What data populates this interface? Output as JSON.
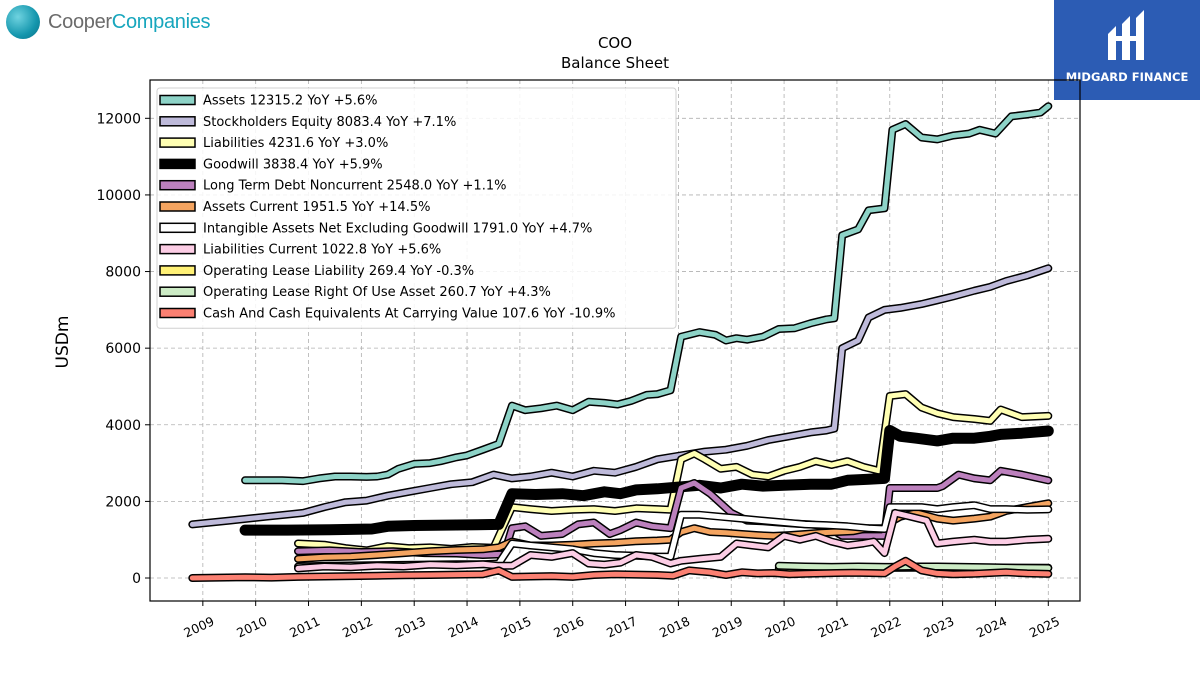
{
  "brand": {
    "company_part1": "Cooper",
    "company_part2": "Companies",
    "badge_name": "MIDGARD FINANCE",
    "badge_color": "#2c5cb4"
  },
  "chart_data": {
    "type": "line",
    "title": "COO",
    "subtitle": "Balance  Sheet",
    "ylabel": "USDm",
    "xlabel": "",
    "ylim": [
      -600,
      13000
    ],
    "xlim": [
      2008.0,
      2025.6
    ],
    "yticks": [
      0,
      2000,
      4000,
      6000,
      8000,
      10000,
      12000
    ],
    "xticks": [
      "2009",
      "2010",
      "2011",
      "2012",
      "2013",
      "2014",
      "2015",
      "2016",
      "2017",
      "2018",
      "2019",
      "2020",
      "2021",
      "2022",
      "2023",
      "2024",
      "2025"
    ],
    "grid": true,
    "legend_position": "top-left",
    "series": [
      {
        "name": "Assets  12315.2 YoY +5.6%",
        "color": "#8dd3c7",
        "width": 5,
        "x": [
          2009.8,
          2010.5,
          2010.9,
          2011.2,
          2011.5,
          2011.8,
          2012.1,
          2012.3,
          2012.5,
          2012.7,
          2013.0,
          2013.3,
          2013.5,
          2013.8,
          2014.0,
          2014.3,
          2014.6,
          2014.85,
          2015.1,
          2015.4,
          2015.7,
          2016.0,
          2016.3,
          2016.6,
          2016.85,
          2017.1,
          2017.4,
          2017.6,
          2017.85,
          2018.05,
          2018.4,
          2018.7,
          2018.9,
          2019.1,
          2019.3,
          2019.6,
          2019.9,
          2020.2,
          2020.5,
          2020.8,
          2020.95,
          2021.1,
          2021.4,
          2021.6,
          2021.9,
          2022.05,
          2022.3,
          2022.6,
          2022.9,
          2023.2,
          2023.5,
          2023.7,
          2024.0,
          2024.3,
          2024.6,
          2024.85,
          2025.0
        ],
        "y": [
          2550,
          2550,
          2530,
          2600,
          2650,
          2650,
          2640,
          2650,
          2700,
          2850,
          2980,
          3000,
          3050,
          3150,
          3200,
          3350,
          3500,
          4500,
          4380,
          4430,
          4500,
          4380,
          4600,
          4570,
          4530,
          4620,
          4780,
          4800,
          4900,
          6300,
          6420,
          6350,
          6200,
          6260,
          6220,
          6300,
          6500,
          6520,
          6650,
          6750,
          6780,
          8950,
          9100,
          9600,
          9650,
          11700,
          11850,
          11500,
          11450,
          11550,
          11600,
          11700,
          11600,
          12050,
          12100,
          12150,
          12315.2
        ]
      },
      {
        "name": "Stockholders Equity  8083.4 YoY +7.1%",
        "color": "#bebada",
        "width": 5,
        "x": [
          2008.8,
          2009.5,
          2010.2,
          2010.9,
          2011.3,
          2011.7,
          2012.1,
          2012.5,
          2012.9,
          2013.3,
          2013.7,
          2014.1,
          2014.5,
          2014.85,
          2015.2,
          2015.6,
          2016.0,
          2016.4,
          2016.8,
          2017.2,
          2017.6,
          2018.05,
          2018.5,
          2018.9,
          2019.3,
          2019.7,
          2020.1,
          2020.5,
          2020.8,
          2020.95,
          2021.1,
          2021.4,
          2021.6,
          2021.9,
          2022.2,
          2022.6,
          2022.9,
          2023.2,
          2023.6,
          2023.9,
          2024.2,
          2024.6,
          2025.0
        ],
        "y": [
          1400,
          1500,
          1600,
          1700,
          1850,
          1980,
          2020,
          2150,
          2250,
          2350,
          2450,
          2500,
          2700,
          2600,
          2650,
          2750,
          2650,
          2800,
          2750,
          2900,
          3100,
          3200,
          3300,
          3350,
          3450,
          3600,
          3700,
          3800,
          3850,
          3900,
          6000,
          6200,
          6800,
          7000,
          7050,
          7150,
          7250,
          7350,
          7500,
          7600,
          7750,
          7900,
          8083.4
        ]
      },
      {
        "name": "Liabilities  4231.6 YoY +3.0%",
        "color": "#ffffb3",
        "width": 5,
        "x": [
          2010.8,
          2011.3,
          2011.7,
          2012.1,
          2012.5,
          2012.9,
          2013.3,
          2013.7,
          2014.1,
          2014.5,
          2014.85,
          2015.2,
          2015.6,
          2016.0,
          2016.4,
          2016.8,
          2017.2,
          2017.6,
          2017.85,
          2018.05,
          2018.3,
          2018.5,
          2018.8,
          2019.1,
          2019.4,
          2019.7,
          2020.0,
          2020.3,
          2020.6,
          2020.9,
          2021.2,
          2021.5,
          2021.8,
          2022.0,
          2022.3,
          2022.6,
          2022.9,
          2023.2,
          2023.6,
          2023.9,
          2024.1,
          2024.5,
          2025.0
        ],
        "y": [
          900,
          870,
          780,
          720,
          830,
          780,
          800,
          760,
          810,
          790,
          1850,
          1800,
          1750,
          1780,
          1800,
          1750,
          1820,
          1800,
          1780,
          3100,
          3250,
          3100,
          2850,
          2900,
          2700,
          2650,
          2800,
          2900,
          3050,
          2950,
          3050,
          2900,
          2800,
          4750,
          4800,
          4450,
          4300,
          4200,
          4150,
          4100,
          4400,
          4200,
          4231.6
        ]
      },
      {
        "name": "Goodwill  3838.4 YoY +5.9%",
        "color": "#000000",
        "width": 8,
        "x": [
          2009.8,
          2010.6,
          2011.4,
          2012.2,
          2012.5,
          2013.0,
          2013.6,
          2014.2,
          2014.6,
          2014.85,
          2015.3,
          2015.8,
          2016.2,
          2016.6,
          2016.9,
          2017.2,
          2017.6,
          2018.05,
          2018.4,
          2018.8,
          2019.2,
          2019.6,
          2020.0,
          2020.5,
          2020.9,
          2021.2,
          2021.6,
          2021.9,
          2022.0,
          2022.2,
          2022.5,
          2022.9,
          2023.2,
          2023.6,
          2023.9,
          2024.1,
          2024.5,
          2025.0
        ],
        "y": [
          1250,
          1250,
          1260,
          1280,
          1350,
          1370,
          1380,
          1390,
          1400,
          2200,
          2180,
          2200,
          2150,
          2250,
          2200,
          2300,
          2330,
          2380,
          2420,
          2350,
          2450,
          2400,
          2420,
          2450,
          2450,
          2550,
          2580,
          2600,
          3850,
          3700,
          3650,
          3580,
          3650,
          3650,
          3700,
          3750,
          3780,
          3838.4
        ]
      },
      {
        "name": "Long Term Debt Noncurrent  2548.0 YoY +1.1%",
        "color": "#bc80bd",
        "width": 5,
        "x": [
          2010.8,
          2011.4,
          2012.0,
          2012.6,
          2013.2,
          2013.8,
          2014.3,
          2014.7,
          2014.85,
          2015.1,
          2015.4,
          2015.8,
          2016.1,
          2016.4,
          2016.7,
          2016.9,
          2017.2,
          2017.5,
          2017.85,
          2018.05,
          2018.3,
          2018.6,
          2019.0,
          2019.3,
          2019.6,
          2019.9,
          2020.2,
          2020.5,
          2020.8,
          2021.1,
          2021.5,
          2021.9,
          2022.0,
          2022.3,
          2022.6,
          2022.9,
          2023.0,
          2023.3,
          2023.6,
          2023.9,
          2024.1,
          2024.5,
          2025.0
        ],
        "y": [
          700,
          720,
          680,
          700,
          650,
          640,
          600,
          620,
          1300,
          1350,
          1100,
          1150,
          1400,
          1450,
          1150,
          1250,
          1450,
          1350,
          1300,
          2350,
          2480,
          2200,
          1700,
          1500,
          1480,
          1450,
          1420,
          1400,
          1350,
          1100,
          1100,
          1100,
          2350,
          2350,
          2350,
          2350,
          2400,
          2700,
          2600,
          2550,
          2800,
          2700,
          2548
        ]
      },
      {
        "name": "Assets Current  1951.5 YoY +14.5%",
        "color": "#f4a460",
        "width": 5,
        "x": [
          2010.8,
          2011.3,
          2011.8,
          2012.3,
          2012.8,
          2013.3,
          2013.8,
          2014.3,
          2014.6,
          2014.85,
          2015.2,
          2015.6,
          2016.0,
          2016.4,
          2016.8,
          2017.2,
          2017.6,
          2017.85,
          2018.05,
          2018.3,
          2018.6,
          2018.9,
          2019.2,
          2019.5,
          2019.8,
          2020.1,
          2020.4,
          2020.7,
          2021.0,
          2021.3,
          2021.6,
          2021.9,
          2022.0,
          2022.2,
          2022.5,
          2022.9,
          2023.2,
          2023.6,
          2023.9,
          2024.2,
          2024.6,
          2025.0
        ],
        "y": [
          500,
          540,
          560,
          600,
          650,
          700,
          730,
          750,
          800,
          950,
          850,
          850,
          870,
          900,
          920,
          960,
          980,
          1000,
          1200,
          1300,
          1200,
          1180,
          1150,
          1120,
          1100,
          1120,
          1150,
          1180,
          1200,
          1220,
          1300,
          1300,
          1450,
          1600,
          1700,
          1550,
          1500,
          1550,
          1600,
          1750,
          1850,
          1951.5
        ]
      },
      {
        "name": "Intangible Assets Net Excluding Goodwill  1791.0 YoY +4.7%",
        "color": "#ffffff",
        "width": 5,
        "x": [
          2010.8,
          2011.4,
          2012.0,
          2012.6,
          2013.2,
          2013.8,
          2014.3,
          2014.6,
          2014.85,
          2015.2,
          2015.6,
          2016.0,
          2016.4,
          2016.8,
          2017.2,
          2017.6,
          2017.85,
          2018.05,
          2018.4,
          2018.8,
          2019.2,
          2019.6,
          2020.0,
          2020.4,
          2020.8,
          2021.2,
          2021.6,
          2021.9,
          2022.0,
          2022.3,
          2022.6,
          2022.9,
          2023.2,
          2023.6,
          2023.9,
          2024.2,
          2024.6,
          2025.0
        ],
        "y": [
          300,
          320,
          330,
          340,
          350,
          360,
          360,
          380,
          900,
          850,
          800,
          750,
          650,
          600,
          580,
          560,
          560,
          1650,
          1650,
          1600,
          1550,
          1500,
          1450,
          1400,
          1380,
          1350,
          1300,
          1280,
          1850,
          1850,
          1850,
          1800,
          1850,
          1900,
          1800,
          1800,
          1780,
          1791
        ]
      },
      {
        "name": "Liabilities Current  1022.8 YoY +5.6%",
        "color": "#fccde5",
        "width": 5,
        "x": [
          2010.8,
          2011.3,
          2011.8,
          2012.3,
          2012.8,
          2013.3,
          2013.8,
          2014.3,
          2014.6,
          2014.85,
          2015.2,
          2015.6,
          2016.0,
          2016.3,
          2016.6,
          2016.9,
          2017.2,
          2017.5,
          2017.85,
          2018.05,
          2018.4,
          2018.8,
          2019.1,
          2019.4,
          2019.7,
          2020.0,
          2020.3,
          2020.6,
          2020.9,
          2021.2,
          2021.5,
          2021.7,
          2021.9,
          2022.1,
          2022.4,
          2022.7,
          2022.9,
          2023.2,
          2023.6,
          2023.9,
          2024.2,
          2024.6,
          2025.0
        ],
        "y": [
          250,
          300,
          280,
          320,
          300,
          350,
          330,
          360,
          320,
          320,
          600,
          550,
          650,
          380,
          350,
          400,
          600,
          550,
          380,
          450,
          500,
          550,
          900,
          850,
          800,
          1100,
          1000,
          1100,
          950,
          850,
          900,
          950,
          650,
          1700,
          1600,
          1500,
          900,
          950,
          1000,
          950,
          950,
          1000,
          1022.8
        ]
      },
      {
        "name": "Operating Lease Liability  269.4 YoY -0.3%",
        "color": "#fff176",
        "width": 5,
        "x": [
          2019.9,
          2020.4,
          2020.9,
          2021.4,
          2021.9,
          2022.4,
          2022.9,
          2023.4,
          2023.9,
          2024.4,
          2025.0
        ],
        "y": [
          250,
          255,
          260,
          262,
          265,
          268,
          270,
          268,
          270,
          270,
          269.4
        ]
      },
      {
        "name": "Operating Lease Right Of Use Asset  260.7 YoY +4.3%",
        "color": "#ccebc5",
        "width": 5,
        "x": [
          2019.9,
          2020.4,
          2020.9,
          2021.4,
          2021.9,
          2022.4,
          2022.9,
          2023.4,
          2023.9,
          2024.4,
          2025.0
        ],
        "y": [
          320,
          300,
          290,
          300,
          290,
          300,
          300,
          290,
          280,
          270,
          260.7
        ]
      },
      {
        "name": "Cash And Cash Equivalents At Carrying Value  107.6 YoY -10.9%",
        "color": "#fb8072",
        "width": 5,
        "x": [
          2008.8,
          2009.3,
          2009.8,
          2010.3,
          2010.8,
          2011.3,
          2011.8,
          2012.3,
          2012.8,
          2013.3,
          2013.8,
          2014.3,
          2014.6,
          2014.85,
          2015.2,
          2015.6,
          2016.0,
          2016.4,
          2016.8,
          2017.2,
          2017.6,
          2017.9,
          2018.2,
          2018.6,
          2018.9,
          2019.2,
          2019.5,
          2019.8,
          2020.1,
          2020.4,
          2020.7,
          2021.0,
          2021.3,
          2021.6,
          2021.9,
          2022.1,
          2022.3,
          2022.6,
          2022.9,
          2023.2,
          2023.6,
          2023.9,
          2024.2,
          2024.6,
          2025.0
        ],
        "y": [
          0,
          10,
          20,
          10,
          30,
          40,
          50,
          60,
          70,
          80,
          90,
          100,
          200,
          30,
          40,
          50,
          30,
          80,
          100,
          90,
          80,
          60,
          200,
          150,
          80,
          150,
          120,
          130,
          100,
          110,
          120,
          130,
          140,
          130,
          120,
          300,
          450,
          200,
          120,
          100,
          110,
          130,
          150,
          120,
          107.6
        ]
      }
    ]
  }
}
